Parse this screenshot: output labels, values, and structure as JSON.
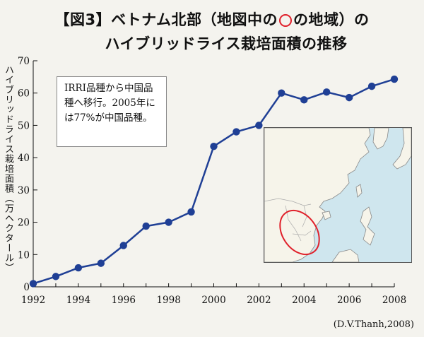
{
  "title": {
    "line1_before": "【図3】ベトナム北部（地図中の",
    "line1_after": "の地域）の",
    "line2": "ハイブリッドライス栽培面積の推移"
  },
  "note": "IRRI品種から中国品種へ移行。2005年には77%が中国品種。",
  "source": "(D.V.Thanh,2008)",
  "map": {
    "highlight_color": "#e0202a"
  },
  "chart_data": {
    "type": "line",
    "title": "ハイブリッドライス栽培面積の推移",
    "xlabel": "",
    "ylabel": "ハイブリッドライス栽培面積（万ヘクタール）",
    "x": [
      1992,
      1993,
      1994,
      1995,
      1996,
      1997,
      1998,
      1999,
      2000,
      2001,
      2002,
      2003,
      2004,
      2005,
      2006,
      2007,
      2008
    ],
    "y": [
      1.0,
      3.2,
      5.9,
      7.3,
      12.8,
      18.8,
      20.0,
      23.2,
      43.5,
      48.0,
      50.0,
      60.0,
      57.9,
      60.3,
      58.6,
      62.1,
      64.3
    ],
    "xticks": [
      1992,
      1994,
      1996,
      1998,
      2000,
      2002,
      2004,
      2006,
      2008
    ],
    "yticks": [
      0,
      10,
      20,
      30,
      40,
      50,
      60,
      70
    ],
    "xlim": [
      1992,
      2008
    ],
    "ylim": [
      0,
      70
    ],
    "line_color": "#1f3f95",
    "grid": false
  }
}
